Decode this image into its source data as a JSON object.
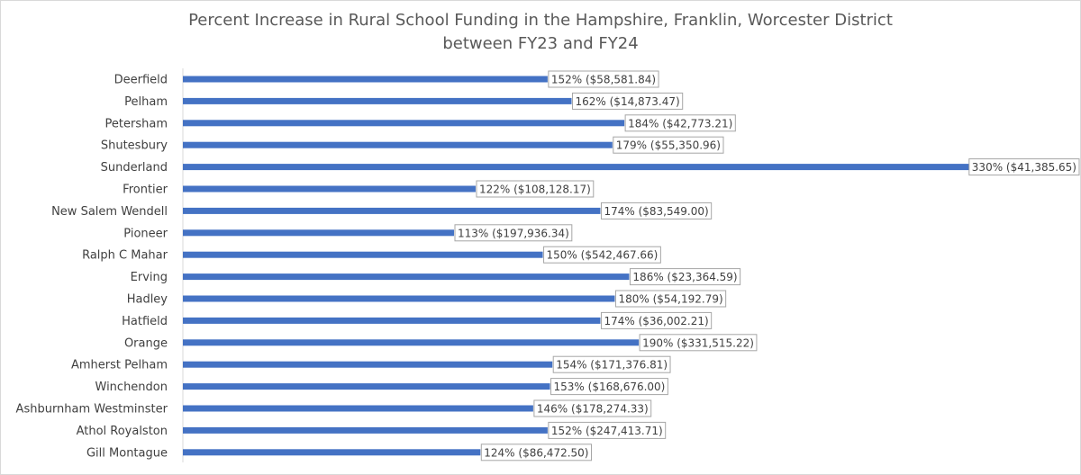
{
  "chart_data": {
    "type": "bar",
    "orientation": "horizontal",
    "title": "Percent Increase in Rural School Funding in the Hampshire, Franklin, Worcester District",
    "subtitle": "between FY23 and FY24",
    "categories": [
      "Deerfield",
      "Pelham",
      "Petersham",
      "Shutesbury",
      "Sunderland",
      "Frontier",
      "New Salem Wendell",
      "Pioneer",
      "Ralph C Mahar",
      "Erving",
      "Hadley",
      "Hatfield",
      "Orange",
      "Amherst Pelham",
      "Winchendon",
      "Ashburnham Westminster",
      "Athol Royalston",
      "Gill Montague"
    ],
    "values": [
      152,
      162,
      184,
      179,
      330,
      122,
      174,
      113,
      150,
      186,
      180,
      174,
      190,
      154,
      153,
      146,
      152,
      124
    ],
    "data_labels": [
      "152% ($58,581.84)",
      "162% ($14,873.47)",
      "184% ($42,773.21)",
      "179% ($55,350.96)",
      "330% ($41,385.65)",
      "122% ($108,128.17)",
      "174% ($83,549.00)",
      "113% ($197,936.34)",
      "150% ($542,467.66)",
      "186% ($23,364.59)",
      "180% ($54,192.79)",
      "174% ($36,002.21)",
      "190% ($331,515.22)",
      "154% ($171,376.81)",
      "153% ($168,676.00)",
      "146% ($178,274.33)",
      "152% ($247,413.71)",
      "124% ($86,472.50)"
    ],
    "unit": "%",
    "xlim": [
      0,
      330
    ],
    "grid": false,
    "legend": "none",
    "bar_color": "#4472c4"
  }
}
